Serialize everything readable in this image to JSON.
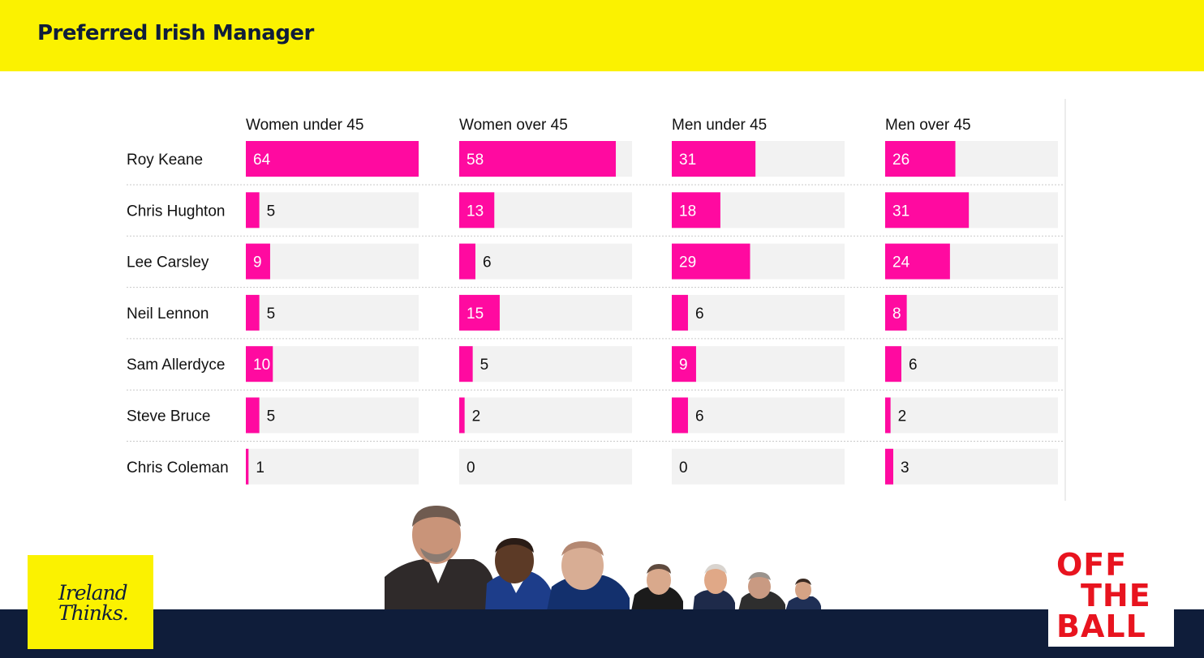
{
  "header": {
    "title": "Preferred Irish Manager"
  },
  "colors": {
    "bar": "#ff0aa0",
    "track": "#f2f2f2",
    "header_bg": "#fbf200",
    "footer_bg": "#0f1d3a",
    "otb_red": "#e8141f"
  },
  "chart_data": {
    "type": "bar",
    "orientation": "horizontal",
    "layout": "small-multiples",
    "panels": [
      "Women under 45",
      "Women over 45",
      "Men under 45",
      "Men over 45"
    ],
    "categories": [
      "Roy Keane",
      "Chris Hughton",
      "Lee Carsley",
      "Neil Lennon",
      "Sam Allerdyce",
      "Steve Bruce",
      "Chris Coleman"
    ],
    "series": [
      {
        "name": "Women under 45",
        "values": [
          64,
          5,
          9,
          5,
          10,
          5,
          1
        ]
      },
      {
        "name": "Women over 45",
        "values": [
          58,
          13,
          6,
          15,
          5,
          2,
          0
        ]
      },
      {
        "name": "Men under 45",
        "values": [
          31,
          18,
          29,
          6,
          9,
          6,
          0
        ]
      },
      {
        "name": "Men over 45",
        "values": [
          26,
          31,
          24,
          8,
          6,
          2,
          3
        ]
      }
    ],
    "xlim": [
      0,
      64
    ],
    "grid": false,
    "data_labels": true
  },
  "logos": {
    "ireland_thinks": [
      "Ireland",
      "Thinks."
    ],
    "off_the_ball": [
      "OFF",
      "THE",
      "BALL"
    ]
  },
  "photo_strip": {
    "people": [
      "Roy Keane",
      "Chris Hughton",
      "Lee Carsley",
      "Neil Lennon",
      "Sam Allardyce",
      "Steve Bruce",
      "Chris Coleman"
    ]
  }
}
